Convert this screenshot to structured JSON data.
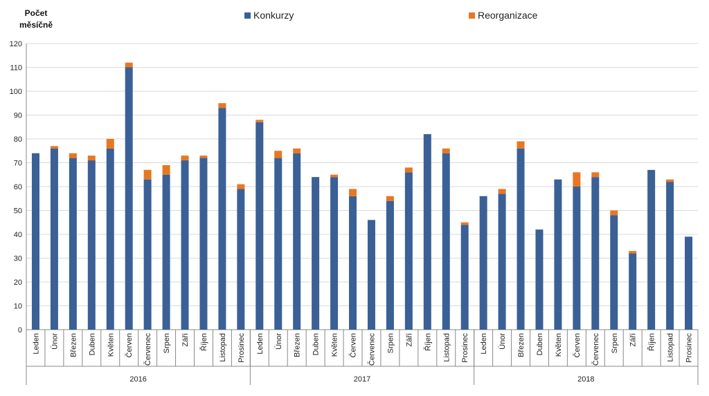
{
  "chart_data": {
    "type": "bar",
    "stacked": true,
    "ylabel_lines": [
      "Počet",
      "měsíčně"
    ],
    "ylim": [
      0,
      120
    ],
    "yticks": [
      0,
      10,
      20,
      30,
      40,
      50,
      60,
      70,
      80,
      90,
      100,
      110,
      120
    ],
    "grid": true,
    "legend_position": "top",
    "groups": [
      {
        "label": "2016",
        "categories": [
          "Leden",
          "Únor",
          "Březen",
          "Duben",
          "Květen",
          "Červen",
          "Červenec",
          "Srpen",
          "Září",
          "Říjen",
          "Listopad",
          "Prosinec"
        ]
      },
      {
        "label": "2017",
        "categories": [
          "Leden",
          "Únor",
          "Březen",
          "Duben",
          "Květen",
          "Červen",
          "Červenec",
          "Srpen",
          "Září",
          "Říjen",
          "Listopad",
          "Prosinec"
        ]
      },
      {
        "label": "2018",
        "categories": [
          "Leden",
          "Únor",
          "Březen",
          "Duben",
          "Květen",
          "Červen",
          "Červenec",
          "Srpen",
          "Září",
          "Říjen",
          "Listopad",
          "Prosinec"
        ]
      }
    ],
    "series": [
      {
        "name": "Konkurzy",
        "color": "#3a6096",
        "values": [
          74,
          76,
          72,
          71,
          76,
          110,
          63,
          65,
          71,
          72,
          93,
          59,
          87,
          72,
          74,
          64,
          64,
          56,
          46,
          54,
          66,
          82,
          74,
          44,
          56,
          57,
          76,
          42,
          63,
          60,
          64,
          48,
          32,
          67,
          62,
          39
        ]
      },
      {
        "name": "Reorganizace",
        "color": "#e87722",
        "values": [
          0,
          1,
          2,
          2,
          4,
          2,
          4,
          4,
          2,
          1,
          2,
          2,
          1,
          3,
          2,
          0,
          1,
          3,
          0,
          2,
          2,
          0,
          2,
          1,
          0,
          2,
          3,
          0,
          0,
          6,
          2,
          2,
          1,
          0,
          1,
          0
        ]
      }
    ]
  }
}
